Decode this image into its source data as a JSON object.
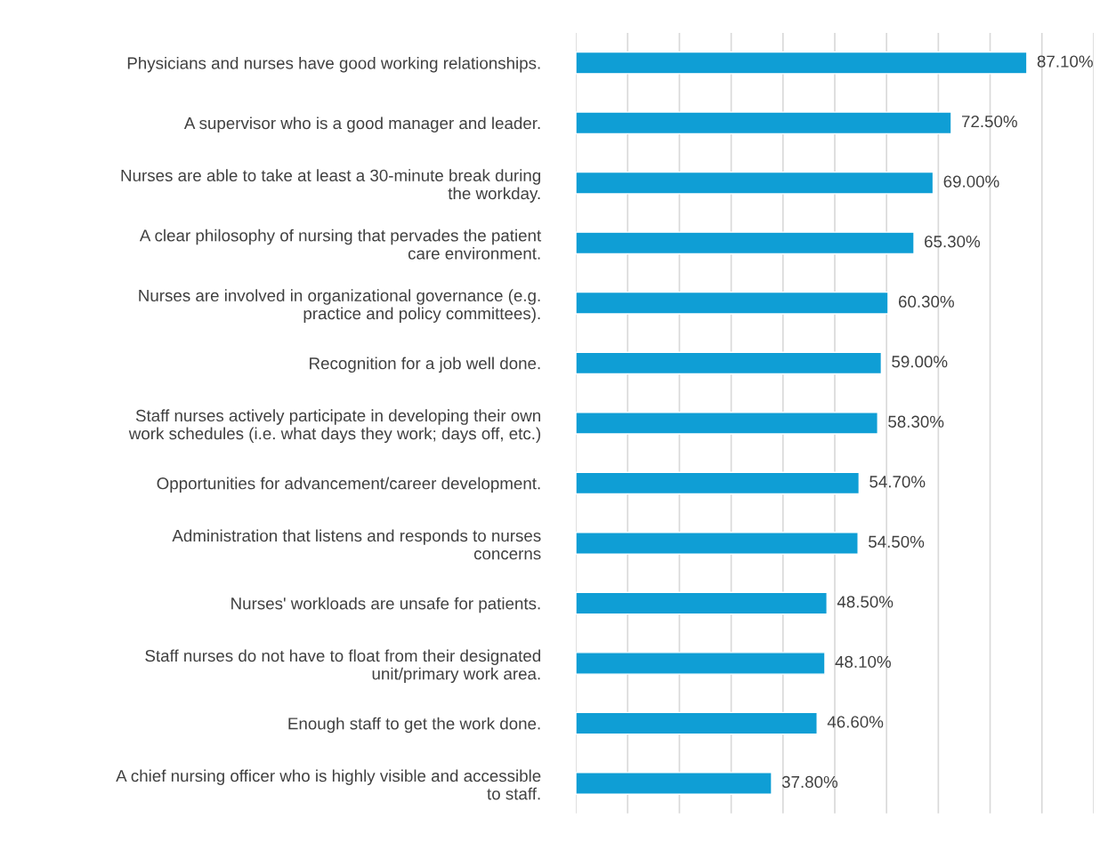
{
  "chart_data": {
    "type": "bar",
    "orientation": "horizontal",
    "categories": [
      "Physicians and nurses have good working relationships.",
      "A supervisor who is a good manager and leader.",
      "Nurses are able to take at least a 30-minute break during\nthe workday.",
      "A clear philosophy of nursing that pervades the patient\ncare environment.",
      "Nurses are involved in organizational governance (e.g.\npractice and policy committees).",
      "Recognition for a job well done.",
      "Staff nurses actively participate in developing their own\nwork schedules (i.e. what days they work; days off, etc.)",
      "Opportunities for advancement/career development.",
      "Administration that listens and responds to nurses\nconcerns",
      "Nurses' workloads are unsafe for patients.",
      "Staff nurses do not have to float from their designated\nunit/primary work area.",
      "Enough staff to get the work done.",
      "A chief nursing officer who is highly visible and accessible\nto staff."
    ],
    "values": [
      87.1,
      72.5,
      69.0,
      65.3,
      60.3,
      59.0,
      58.3,
      54.7,
      54.5,
      48.5,
      48.1,
      46.6,
      37.8
    ],
    "value_labels": [
      "87.10%",
      "72.50%",
      "69.00%",
      "65.30%",
      "60.30%",
      "59.00%",
      "58.30%",
      "54.70%",
      "54.50%",
      "48.50%",
      "48.10%",
      "46.60%",
      "37.80%"
    ],
    "color": "#0f9ed5",
    "xlim": [
      0,
      100
    ],
    "xticks": [
      {
        "value": 0,
        "label": null
      },
      {
        "value": 10,
        "label": null
      },
      {
        "value": 20,
        "label": null
      },
      {
        "value": 30,
        "label": null
      },
      {
        "value": 40,
        "label": null
      },
      {
        "value": 50,
        "label": null
      },
      {
        "value": 60,
        "label": null
      },
      {
        "value": 70,
        "label": null
      },
      {
        "value": 80,
        "label": null
      },
      {
        "value": 90,
        "label": null
      },
      {
        "value": 100,
        "label": null
      }
    ],
    "grid": "x"
  }
}
